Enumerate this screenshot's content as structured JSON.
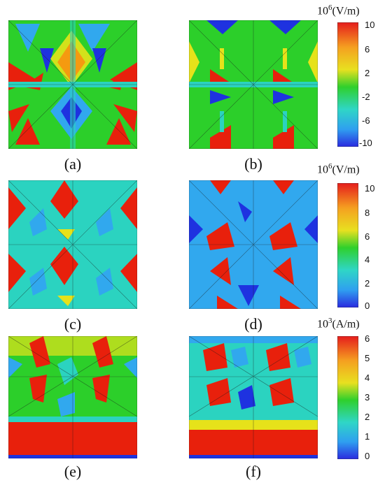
{
  "panels": [
    {
      "id": "a",
      "label": "(a)"
    },
    {
      "id": "b",
      "label": "(b)"
    },
    {
      "id": "c",
      "label": "(c)"
    },
    {
      "id": "d",
      "label": "(d)"
    },
    {
      "id": "e",
      "label": "(e)"
    },
    {
      "id": "f",
      "label": "(f)"
    }
  ],
  "colorbars": [
    {
      "unit_base": "10",
      "unit_exp": "6",
      "unit_rest": "(V/m)",
      "ticks": [
        "10",
        "6",
        "2",
        "-2",
        "-6",
        "-10"
      ]
    },
    {
      "unit_base": "10",
      "unit_exp": "6",
      "unit_rest": "(V/m)",
      "ticks": [
        "10",
        "8",
        "6",
        "4",
        "2",
        "0"
      ]
    },
    {
      "unit_base": "10",
      "unit_exp": "3",
      "unit_rest": "(A/m)",
      "ticks": [
        "6",
        "5",
        "4",
        "3",
        "2",
        "1",
        "0"
      ]
    }
  ],
  "colors": {
    "red": "#e8200c",
    "orange": "#f59a10",
    "yellow": "#e6e21a",
    "green": "#2ccf2a",
    "cyan": "#2bd3c0",
    "lightblue": "#31a8ee",
    "blue": "#1e32e0"
  }
}
